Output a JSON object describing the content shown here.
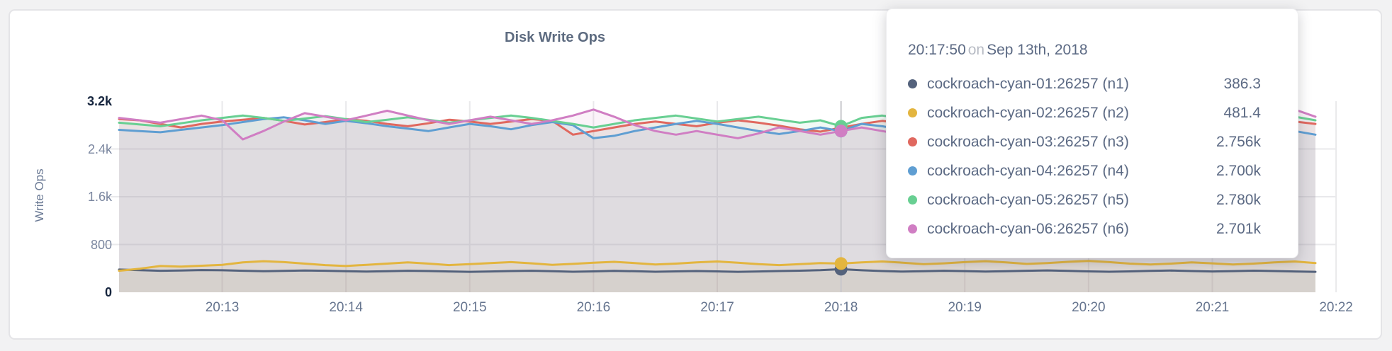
{
  "panel": {
    "title": "Disk Write Ops"
  },
  "y_axis": {
    "label": "Write Ops",
    "ticks": [
      {
        "label": "0",
        "value": 0,
        "emph": true
      },
      {
        "label": "800",
        "value": 800,
        "emph": false
      },
      {
        "label": "1.6k",
        "value": 1600,
        "emph": false
      },
      {
        "label": "2.4k",
        "value": 2400,
        "emph": false
      },
      {
        "label": "3.2k",
        "value": 3200,
        "emph": true
      }
    ]
  },
  "tooltip": {
    "time": "20:17:50",
    "on_word": "on",
    "date": "Sep 13th, 2018",
    "rows": [
      {
        "series": "n1",
        "name": "cockroach-cyan-01:26257 (n1)",
        "value": "386.3",
        "color": "#54627c"
      },
      {
        "series": "n2",
        "name": "cockroach-cyan-02:26257 (n2)",
        "value": "481.4",
        "color": "#e3b53f"
      },
      {
        "series": "n3",
        "name": "cockroach-cyan-03:26257 (n3)",
        "value": "2.756k",
        "color": "#e0685f"
      },
      {
        "series": "n4",
        "name": "cockroach-cyan-04:26257 (n4)",
        "value": "2.700k",
        "color": "#5f9ed2"
      },
      {
        "series": "n5",
        "name": "cockroach-cyan-05:26257 (n5)",
        "value": "2.780k",
        "color": "#68cf92"
      },
      {
        "series": "n6",
        "name": "cockroach-cyan-06:26257 (n6)",
        "value": "2.701k",
        "color": "#d07ec3"
      }
    ]
  },
  "chart_data": {
    "type": "line",
    "title": "Disk Write Ops",
    "ylabel": "Write Ops",
    "ylim": [
      0,
      3200
    ],
    "x_start": "20:12:10",
    "x_interval_seconds": 10,
    "x_ticks": [
      "20:13",
      "20:14",
      "20:15",
      "20:16",
      "20:17",
      "20:18",
      "20:19",
      "20:20",
      "20:21",
      "20:22"
    ],
    "tick_first_index": 5,
    "tick_step": 6,
    "grid": true,
    "legend_position": "tooltip",
    "hover": {
      "index": 35,
      "time": "20:17:50",
      "dot_radius": 9,
      "dot_order": [
        "n3",
        "n4",
        "n5",
        "n6",
        "n1",
        "n2"
      ]
    },
    "draw_order": [
      "n3",
      "n4",
      "n5",
      "n1",
      "n2",
      "n6"
    ],
    "series": [
      {
        "id": "n1",
        "name": "cockroach-cyan-01:26257 (n1)",
        "color": "#54627c",
        "fill_opacity": 0.06,
        "values": [
          380,
          370,
          360,
          365,
          372,
          368,
          360,
          352,
          358,
          365,
          360,
          352,
          346,
          352,
          360,
          355,
          348,
          342,
          348,
          355,
          360,
          352,
          344,
          350,
          358,
          352,
          344,
          350,
          356,
          350,
          342,
          348,
          356,
          362,
          370,
          386.3,
          368,
          356,
          346,
          352,
          360,
          354,
          346,
          352,
          360,
          366,
          358,
          350,
          344,
          350,
          358,
          364,
          356,
          348,
          354,
          362,
          356,
          348,
          342
        ]
      },
      {
        "id": "n2",
        "name": "cockroach-cyan-02:26257 (n2)",
        "color": "#e3b53f",
        "fill_opacity": 0.09,
        "values": [
          360,
          395,
          440,
          430,
          445,
          460,
          500,
          520,
          505,
          480,
          455,
          440,
          460,
          480,
          500,
          480,
          455,
          470,
          490,
          505,
          485,
          460,
          475,
          495,
          510,
          490,
          465,
          480,
          500,
          515,
          495,
          470,
          455,
          470,
          490,
          481.4,
          500,
          515,
          495,
          470,
          485,
          505,
          520,
          500,
          475,
          490,
          510,
          525,
          505,
          480,
          465,
          480,
          500,
          485,
          465,
          480,
          500,
          515,
          490
        ]
      },
      {
        "id": "n3",
        "name": "cockroach-cyan-03:26257 (n3)",
        "color": "#e0685f",
        "fill_opacity": 0.095,
        "values": [
          2900,
          2880,
          2820,
          2760,
          2820,
          2860,
          2890,
          2920,
          2870,
          2810,
          2850,
          2900,
          2870,
          2820,
          2780,
          2830,
          2890,
          2860,
          2820,
          2860,
          2900,
          2870,
          2640,
          2700,
          2760,
          2820,
          2860,
          2820,
          2780,
          2840,
          2880,
          2840,
          2790,
          2730,
          2690,
          2756,
          2820,
          2870,
          2830,
          2780,
          2840,
          2890,
          2850,
          2800,
          2760,
          2820,
          2870,
          2830,
          2780,
          2730,
          2790,
          2850,
          2880,
          2840,
          2790,
          2750,
          2810,
          2860,
          2820
        ]
      },
      {
        "id": "n4",
        "name": "cockroach-cyan-04:26257 (n4)",
        "color": "#5f9ed2",
        "fill_opacity": 0.095,
        "values": [
          2720,
          2700,
          2680,
          2720,
          2760,
          2800,
          2850,
          2900,
          2930,
          2880,
          2820,
          2870,
          2830,
          2780,
          2740,
          2700,
          2760,
          2820,
          2780,
          2730,
          2800,
          2850,
          2800,
          2580,
          2620,
          2700,
          2760,
          2820,
          2870,
          2820,
          2760,
          2700,
          2650,
          2700,
          2760,
          2700,
          2820,
          2780,
          2720,
          2660,
          2720,
          2780,
          2840,
          2900,
          2860,
          2800,
          2860,
          2900,
          2850,
          2790,
          2730,
          2790,
          2850,
          2800,
          2740,
          2700,
          2760,
          2700,
          2640
        ]
      },
      {
        "id": "n5",
        "name": "cockroach-cyan-05:26257 (n5)",
        "color": "#68cf92",
        "fill_opacity": 0.095,
        "values": [
          2840,
          2810,
          2780,
          2830,
          2880,
          2920,
          2960,
          2920,
          2870,
          2910,
          2950,
          2900,
          2850,
          2890,
          2930,
          2890,
          2840,
          2880,
          2920,
          2960,
          2920,
          2870,
          2820,
          2760,
          2820,
          2880,
          2920,
          2960,
          2910,
          2860,
          2900,
          2940,
          2890,
          2840,
          2880,
          2780,
          2920,
          2960,
          2910,
          2860,
          2900,
          2940,
          2890,
          2840,
          2880,
          2920,
          2870,
          2820,
          2860,
          2900,
          2940,
          2890,
          2840,
          2880,
          2920,
          2870,
          2900,
          2940,
          2880
        ]
      },
      {
        "id": "n6",
        "name": "cockroach-cyan-06:26257 (n6)",
        "color": "#d07ec3",
        "fill_opacity": 0.095,
        "values": [
          2920,
          2880,
          2840,
          2900,
          2960,
          2880,
          2560,
          2700,
          2860,
          3000,
          2940,
          2880,
          2960,
          3040,
          2960,
          2880,
          2820,
          2880,
          2940,
          2880,
          2820,
          2880,
          2960,
          3060,
          2940,
          2800,
          2700,
          2640,
          2700,
          2640,
          2580,
          2660,
          2760,
          2700,
          2640,
          2701,
          2760,
          2700,
          2640,
          2700,
          2780,
          3060,
          2900,
          2740,
          2640,
          2720,
          2800,
          2740,
          2680,
          2740,
          2820,
          2760,
          2700,
          2760,
          2840,
          2780,
          2720,
          3060,
          2940
        ]
      }
    ]
  }
}
